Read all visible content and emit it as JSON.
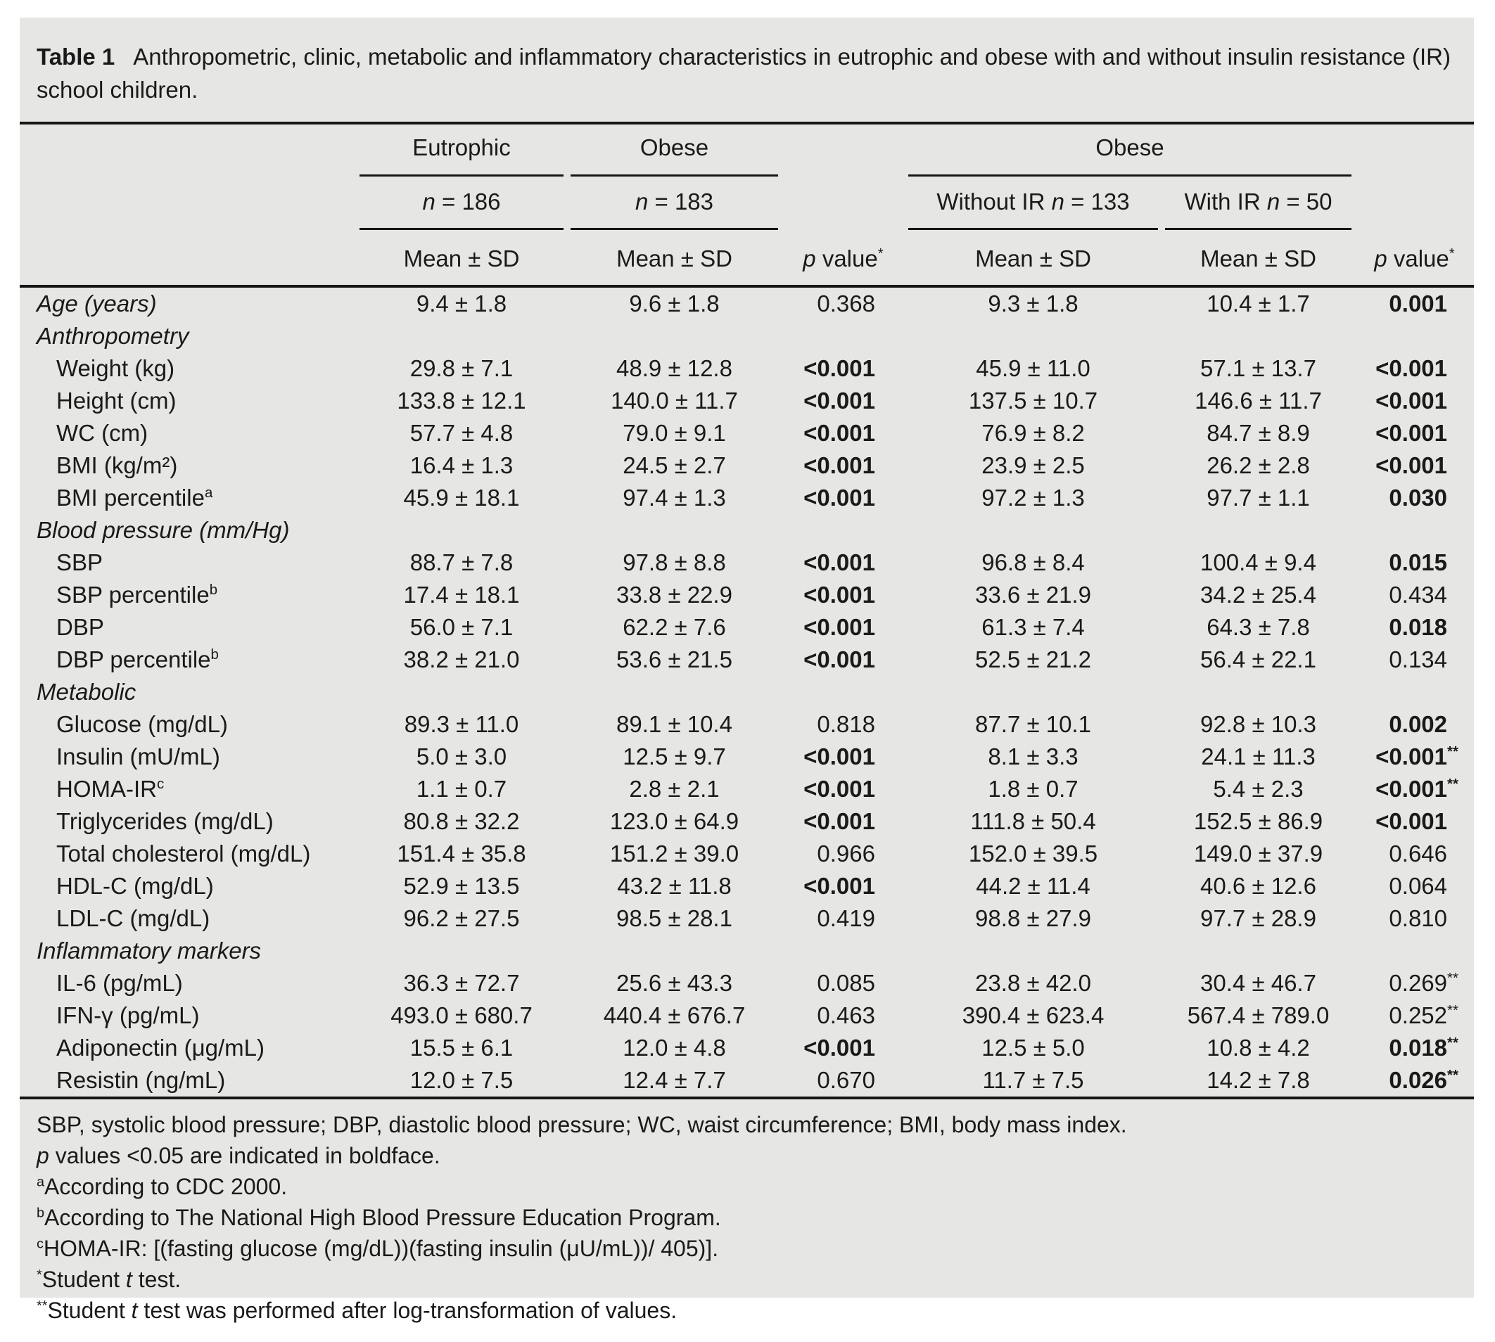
{
  "colors": {
    "panel_bg": "#e6e6e4",
    "text": "#1a1a1a"
  },
  "title": {
    "tag": "Table 1",
    "text": "Anthropometric, clinic, metabolic and inflammatory characteristics in eutrophic and obese with and without insulin resistance (IR) school children."
  },
  "header": {
    "eutrophic": "Eutrophic",
    "obese": "Obese",
    "obese_group": "Obese",
    "n1": {
      "n": "n",
      "rest": " = 186"
    },
    "n2": {
      "n": "n",
      "rest": " = 183"
    },
    "n3": {
      "pre": "Without IR ",
      "n": "n",
      "rest": " = 133"
    },
    "n4": {
      "pre": "With IR ",
      "n": "n",
      "rest": " = 50"
    },
    "mean_sd": "Mean ± SD",
    "p_value": {
      "p": "p",
      "rest": " value",
      "sup": "*"
    }
  },
  "rows": [
    {
      "label": "Age (years)",
      "c1": "9.4 ± 1.8",
      "c2": "9.6 ± 1.8",
      "p1": "0.368",
      "c3": "9.3 ± 1.8",
      "c4": "10.4 ± 1.7",
      "p2": "0.001"
    },
    {
      "label": "Anthropometry"
    },
    {
      "label": "Weight (kg)",
      "c1": "29.8 ± 7.1",
      "c2": "48.9 ± 12.8",
      "p1": "<0.001",
      "c3": "45.9 ± 11.0",
      "c4": "57.1 ± 13.7",
      "p2": "<0.001"
    },
    {
      "label": "Height (cm)",
      "c1": "133.8 ± 12.1",
      "c2": "140.0 ± 11.7",
      "p1": "<0.001",
      "c3": "137.5 ± 10.7",
      "c4": "146.6 ± 11.7",
      "p2": "<0.001"
    },
    {
      "label": "WC (cm)",
      "c1": "57.7 ± 4.8",
      "c2": "79.0 ± 9.1",
      "p1": "<0.001",
      "c3": "76.9 ± 8.2",
      "c4": "84.7 ± 8.9",
      "p2": "<0.001"
    },
    {
      "label": "BMI (kg/m²)",
      "c1": "16.4 ± 1.3",
      "c2": "24.5 ± 2.7",
      "p1": "<0.001",
      "c3": "23.9 ± 2.5",
      "c4": "26.2 ± 2.8",
      "p2": "<0.001"
    },
    {
      "label": "BMI percentile",
      "sup": "a",
      "c1": "45.9 ± 18.1",
      "c2": "97.4 ± 1.3",
      "p1": "<0.001",
      "c3": "97.2 ± 1.3",
      "c4": "97.7 ± 1.1",
      "p2": "0.030"
    },
    {
      "label": "Blood pressure (mm/Hg)"
    },
    {
      "label": "SBP",
      "c1": "88.7 ± 7.8",
      "c2": "97.8 ± 8.8",
      "p1": "<0.001",
      "c3": "96.8 ± 8.4",
      "c4": "100.4 ± 9.4",
      "p2": "0.015"
    },
    {
      "label": "SBP percentile",
      "sup": "b",
      "c1": "17.4 ± 18.1",
      "c2": "33.8 ± 22.9",
      "p1": "<0.001",
      "c3": "33.6 ± 21.9",
      "c4": "34.2 ± 25.4",
      "p2": "0.434"
    },
    {
      "label": "DBP",
      "c1": "56.0 ± 7.1",
      "c2": "62.2 ± 7.6",
      "p1": "<0.001",
      "c3": "61.3 ± 7.4",
      "c4": "64.3 ± 7.8",
      "p2": "0.018"
    },
    {
      "label": "DBP percentile",
      "sup": "b",
      "c1": "38.2 ± 21.0",
      "c2": "53.6 ± 21.5",
      "p1": "<0.001",
      "c3": "52.5 ± 21.2",
      "c4": "56.4 ± 22.1",
      "p2": "0.134"
    },
    {
      "label": "Metabolic"
    },
    {
      "label": "Glucose (mg/dL)",
      "c1": "89.3 ± 11.0",
      "c2": "89.1 ± 10.4",
      "p1": "0.818",
      "c3": "87.7 ± 10.1",
      "c4": "92.8 ± 10.3",
      "p2": "0.002"
    },
    {
      "label": "Insulin (mU/mL)",
      "c1": "5.0 ± 3.0",
      "c2": "12.5 ± 9.7",
      "p1": "<0.001",
      "c3": "8.1 ± 3.3",
      "c4": "24.1 ± 11.3",
      "p2": "<0.001",
      "p2sup": "**"
    },
    {
      "label": "HOMA-IR",
      "sup": "c",
      "c1": "1.1 ± 0.7",
      "c2": "2.8 ± 2.1",
      "p1": "<0.001",
      "c3": "1.8 ± 0.7",
      "c4": "5.4 ± 2.3",
      "p2": "<0.001",
      "p2sup": "**"
    },
    {
      "label": "Triglycerides (mg/dL)",
      "c1": "80.8 ± 32.2",
      "c2": "123.0 ± 64.9",
      "p1": "<0.001",
      "c3": "111.8 ± 50.4",
      "c4": "152.5 ± 86.9",
      "p2": "<0.001"
    },
    {
      "label": "Total cholesterol (mg/dL)",
      "c1": "151.4 ± 35.8",
      "c2": "151.2 ± 39.0",
      "p1": "0.966",
      "c3": "152.0 ± 39.5",
      "c4": "149.0 ± 37.9",
      "p2": "0.646"
    },
    {
      "label": "HDL-C (mg/dL)",
      "c1": "52.9 ± 13.5",
      "c2": "43.2 ± 11.8",
      "p1": "<0.001",
      "c3": "44.2 ± 11.4",
      "c4": "40.6 ± 12.6",
      "p2": "0.064"
    },
    {
      "label": "LDL-C (mg/dL)",
      "c1": "96.2 ± 27.5",
      "c2": "98.5 ± 28.1",
      "p1": "0.419",
      "c3": "98.8 ± 27.9",
      "c4": "97.7 ± 28.9",
      "p2": "0.810"
    },
    {
      "label": "Inflammatory markers"
    },
    {
      "label": "IL-6 (pg/mL)",
      "c1": "36.3 ± 72.7",
      "c2": "25.6 ± 43.3",
      "p1": "0.085",
      "c3": "23.8 ± 42.0",
      "c4": "30.4 ± 46.7",
      "p2": "0.269",
      "p2sup": "**"
    },
    {
      "label": "IFN-γ (pg/mL)",
      "c1": "493.0 ± 680.7",
      "c2": "440.4 ± 676.7",
      "p1": "0.463",
      "c3": "390.4 ± 623.4",
      "c4": "567.4 ± 789.0",
      "p2": "0.252",
      "p2sup": "**"
    },
    {
      "label": "Adiponectin (μg/mL)",
      "c1": "15.5 ± 6.1",
      "c2": "12.0 ± 4.8",
      "p1": "<0.001",
      "c3": "12.5 ± 5.0",
      "c4": "10.8 ± 4.2",
      "p2": "0.018",
      "p2sup": "**"
    },
    {
      "label": "Resistin (ng/mL)",
      "c1": "12.0 ± 7.5",
      "c2": "12.4 ± 7.7",
      "p1": "0.670",
      "c3": "11.7 ± 7.5",
      "c4": "14.2 ± 7.8",
      "p2": "0.026",
      "p2sup": "**"
    }
  ],
  "footnotes": {
    "f1": "SBP, systolic blood pressure; DBP, diastolic blood pressure; WC, waist circumference; BMI, body mass index.",
    "f2": {
      "i": "p",
      "rest": " values <0.05 are indicated in boldface."
    },
    "f3": {
      "sup": "a",
      "rest": "According to CDC 2000."
    },
    "f4": {
      "sup": "b",
      "rest": "According to The National High Blood Pressure Education Program."
    },
    "f5": {
      "sup": "c",
      "rest": "HOMA-IR: [(fasting glucose (mg/dL))(fasting insulin (μU/mL))/ 405)]."
    },
    "f6": {
      "sup": "*",
      "pre": "Student ",
      "i": "t",
      "rest": " test."
    },
    "f7": {
      "sup": "**",
      "pre": "Student ",
      "i": "t",
      "rest": " test was performed after log-transformation of values."
    }
  }
}
